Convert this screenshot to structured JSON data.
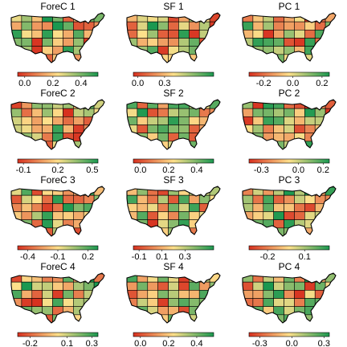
{
  "chart_data": [
    {
      "type": "choropleth",
      "title": "ForeC 1",
      "colorbar_ticks": [
        "0.0",
        "0.2",
        "0.4"
      ],
      "range": [
        -0.05,
        0.52
      ],
      "scale": "red-yellow-green",
      "seed": 1
    },
    {
      "type": "choropleth",
      "title": "SF 1",
      "colorbar_ticks": [
        "0.0",
        "0.3"
      ],
      "range": [
        -0.05,
        0.85
      ],
      "scale": "red-yellow-green",
      "seed": 2
    },
    {
      "type": "choropleth",
      "title": "PC 1",
      "colorbar_ticks": [
        "-0.2",
        "0.0",
        "0.2"
      ],
      "range": [
        -0.3,
        0.25
      ],
      "scale": "red-yellow-green",
      "seed": 3
    },
    {
      "type": "choropleth",
      "title": "ForeC 2",
      "colorbar_ticks": [
        "-0.1",
        "0.2",
        "0.5"
      ],
      "range": [
        -0.15,
        0.55
      ],
      "scale": "red-yellow-green",
      "seed": 4
    },
    {
      "type": "choropleth",
      "title": "SF 2",
      "colorbar_ticks": [
        "0.0",
        "0.2",
        "0.4"
      ],
      "range": [
        -0.05,
        0.52
      ],
      "scale": "red-yellow-green",
      "seed": 5
    },
    {
      "type": "choropleth",
      "title": "PC 2",
      "colorbar_ticks": [
        "-0.3",
        "0.0",
        "0.2"
      ],
      "range": [
        -0.4,
        0.25
      ],
      "scale": "red-yellow-green",
      "seed": 6
    },
    {
      "type": "choropleth",
      "title": "ForeC 3",
      "colorbar_ticks": [
        "-0.4",
        "-0.1",
        "0.2"
      ],
      "range": [
        -0.5,
        0.3
      ],
      "scale": "red-yellow-green",
      "seed": 7
    },
    {
      "type": "choropleth",
      "title": "SF 3",
      "colorbar_ticks": [
        "-0.1",
        "0.1",
        "0.3"
      ],
      "range": [
        -0.15,
        0.55
      ],
      "scale": "red-yellow-green",
      "seed": 8
    },
    {
      "type": "choropleth",
      "title": "PC 3",
      "colorbar_ticks": [
        "-0.2",
        "0.1"
      ],
      "range": [
        -0.35,
        0.3
      ],
      "scale": "red-yellow-green",
      "seed": 9
    },
    {
      "type": "choropleth",
      "title": "ForeC 4",
      "colorbar_ticks": [
        "-0.2",
        "0.1",
        "0.3"
      ],
      "range": [
        -0.3,
        0.35
      ],
      "scale": "red-yellow-green",
      "seed": 10
    },
    {
      "type": "choropleth",
      "title": "SF 4",
      "colorbar_ticks": [
        "0.0",
        "0.2",
        "0.4"
      ],
      "range": [
        -0.05,
        0.52
      ],
      "scale": "red-yellow-green",
      "seed": 11
    },
    {
      "type": "choropleth",
      "title": "PC 4",
      "colorbar_ticks": [
        "-0.3",
        "0.0",
        "0.3"
      ],
      "range": [
        -0.4,
        0.35
      ],
      "scale": "red-yellow-green",
      "seed": 12
    }
  ],
  "colors": {
    "low": "#d7301f",
    "mid": "#fee08b",
    "high": "#1a9850",
    "border": "#000000"
  }
}
